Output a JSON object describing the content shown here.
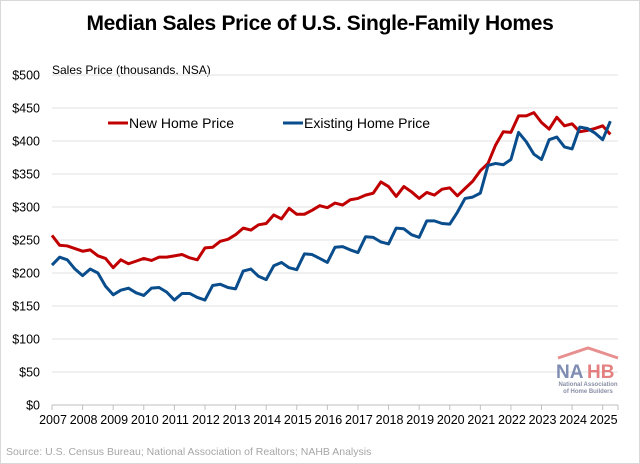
{
  "chart_data": {
    "type": "line",
    "title": "Median Sales Price of U.S. Single-Family Homes",
    "ylabel": "Sales Price (thousands, NSA)",
    "xlabel": "",
    "ylim": [
      0,
      500
    ],
    "xlim": [
      2007,
      2025.5
    ],
    "yticks": [
      0,
      50,
      100,
      150,
      200,
      250,
      300,
      350,
      400,
      450,
      500
    ],
    "ytick_labels": [
      "$0",
      "$50",
      "$100",
      "$150",
      "$200",
      "$250",
      "$300",
      "$350",
      "$400",
      "$450",
      "$500"
    ],
    "xtick_labels": [
      "2007",
      "2008",
      "2009",
      "2010",
      "2011",
      "2012",
      "2013",
      "2014",
      "2015",
      "2016",
      "2017",
      "2018",
      "2019",
      "2020",
      "2021",
      "2022",
      "2023",
      "2024",
      "2025"
    ],
    "grid": true,
    "legend_position": "top-left",
    "x_start": 2007,
    "x_step": 0.25,
    "series": [
      {
        "name": "New Home Price",
        "color": "#c00000",
        "values": [
          257,
          242,
          241,
          237,
          233,
          235,
          226,
          222,
          208,
          220,
          214,
          218,
          222,
          219,
          224,
          224,
          226,
          228,
          223,
          220,
          238,
          239,
          248,
          251,
          258,
          268,
          265,
          273,
          275,
          288,
          282,
          298,
          289,
          289,
          295,
          302,
          299,
          306,
          303,
          311,
          313,
          318,
          321,
          338,
          331,
          316,
          331,
          323,
          313,
          322,
          318,
          327,
          329,
          317,
          328,
          339,
          355,
          366,
          394,
          414,
          413,
          438,
          438,
          443,
          428,
          418,
          436,
          423,
          426,
          414,
          416,
          419,
          423,
          410
        ]
      },
      {
        "name": "Existing Home Price",
        "color": "#0a4d8c",
        "values": [
          212,
          224,
          220,
          206,
          196,
          206,
          200,
          180,
          167,
          174,
          177,
          170,
          166,
          177,
          178,
          171,
          159,
          169,
          169,
          163,
          159,
          181,
          183,
          178,
          176,
          203,
          206,
          195,
          190,
          211,
          216,
          208,
          205,
          229,
          228,
          222,
          216,
          239,
          240,
          235,
          231,
          255,
          254,
          247,
          244,
          268,
          267,
          258,
          254,
          279,
          279,
          275,
          274,
          292,
          313,
          315,
          321,
          363,
          366,
          364,
          372,
          413,
          399,
          380,
          372,
          402,
          406,
          391,
          388,
          421,
          419,
          412,
          402,
          430
        ]
      }
    ]
  },
  "source": "Source: U.S. Census Bureau; National Association of Realtors; NAHB Analysis",
  "logo": {
    "name": "NAHB",
    "subtitle_line1": "National Association",
    "subtitle_line2": "of Home Builders"
  }
}
